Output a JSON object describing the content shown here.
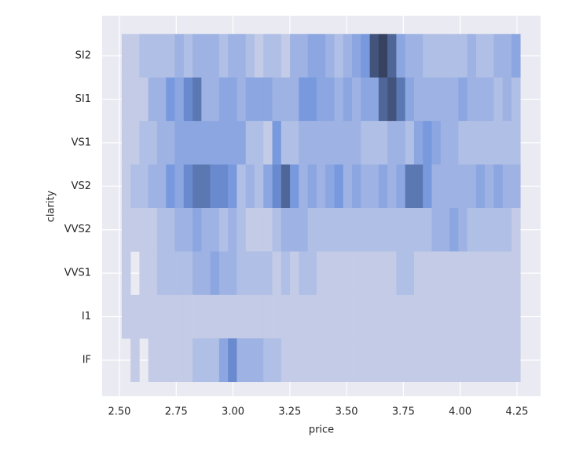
{
  "chart_data": {
    "type": "hist2d",
    "x_label": "price",
    "y_label": "clarity",
    "categories": [
      "SI2",
      "SI1",
      "VS1",
      "VS2",
      "VVS2",
      "VVS1",
      "I1",
      "IF"
    ],
    "bins": [
      2.51,
      2.549,
      2.588,
      2.627,
      2.666,
      2.705,
      2.744,
      2.783,
      2.822,
      2.861,
      2.9,
      2.939,
      2.978,
      3.017,
      3.056,
      3.095,
      3.134,
      3.173,
      3.212,
      3.251,
      3.29,
      3.329,
      3.368,
      3.407,
      3.446,
      3.485,
      3.524,
      3.563,
      3.602,
      3.641,
      3.68,
      3.719,
      3.758,
      3.797,
      3.836,
      3.875,
      3.914,
      3.953,
      3.992,
      4.031,
      4.07,
      4.109,
      4.148,
      4.187,
      4.226,
      4.265
    ],
    "counts": [
      [
        1,
        1,
        2,
        2,
        2,
        2,
        3,
        2,
        3,
        3,
        3,
        2,
        3,
        3,
        2,
        1,
        2,
        2,
        1,
        3,
        3,
        4,
        4,
        3,
        2,
        3,
        4,
        5,
        9,
        10,
        8,
        4,
        3,
        3,
        2,
        2,
        2,
        2,
        2,
        3,
        2,
        2,
        3,
        3,
        4
      ],
      [
        1,
        1,
        1,
        3,
        3,
        5,
        4,
        6,
        7,
        3,
        3,
        4,
        4,
        3,
        4,
        4,
        4,
        3,
        3,
        3,
        5,
        5,
        4,
        4,
        3,
        4,
        3,
        4,
        4,
        8,
        9,
        7,
        4,
        3,
        3,
        3,
        3,
        3,
        4,
        3,
        3,
        3,
        2,
        3,
        2
      ],
      [
        1,
        1,
        2,
        2,
        3,
        3,
        4,
        4,
        4,
        4,
        4,
        4,
        4,
        4,
        2,
        2,
        1,
        5,
        2,
        2,
        3,
        3,
        3,
        3,
        3,
        3,
        3,
        2,
        2,
        2,
        3,
        3,
        2,
        4,
        5,
        4,
        3,
        3,
        2,
        2,
        2,
        2,
        2,
        2,
        2
      ],
      [
        1,
        2,
        2,
        3,
        3,
        5,
        4,
        6,
        7,
        7,
        6,
        6,
        5,
        2,
        3,
        2,
        4,
        6,
        8,
        5,
        3,
        4,
        3,
        4,
        5,
        3,
        4,
        3,
        3,
        4,
        3,
        4,
        7,
        7,
        5,
        3,
        3,
        3,
        3,
        3,
        4,
        3,
        4,
        3,
        3
      ],
      [
        1,
        1,
        1,
        1,
        2,
        2,
        3,
        3,
        4,
        3,
        3,
        2,
        3,
        2,
        1,
        1,
        1,
        2,
        3,
        3,
        3,
        2,
        2,
        2,
        2,
        2,
        2,
        2,
        2,
        2,
        2,
        2,
        2,
        2,
        2,
        3,
        3,
        4,
        3,
        2,
        2,
        2,
        2,
        2,
        1
      ],
      [
        1,
        0,
        1,
        1,
        2,
        2,
        2,
        2,
        3,
        3,
        4,
        3,
        3,
        2,
        2,
        2,
        2,
        1,
        2,
        1,
        2,
        2,
        1,
        1,
        1,
        1,
        1,
        1,
        1,
        1,
        1,
        2,
        2,
        1,
        1,
        1,
        1,
        1,
        1,
        1,
        1,
        1,
        1,
        1,
        1
      ],
      [
        1,
        1,
        1,
        1,
        1,
        1,
        1,
        1,
        1,
        1,
        1,
        1,
        1,
        1,
        1,
        1,
        1,
        1,
        1,
        1,
        1,
        1,
        1,
        1,
        1,
        1,
        1,
        1,
        1,
        1,
        1,
        1,
        1,
        1,
        1,
        1,
        1,
        1,
        1,
        1,
        1,
        1,
        1,
        1,
        1
      ],
      [
        0,
        1,
        0,
        1,
        1,
        1,
        1,
        1,
        2,
        2,
        2,
        4,
        6,
        3,
        3,
        3,
        2,
        2,
        1,
        1,
        1,
        1,
        1,
        1,
        1,
        1,
        1,
        1,
        1,
        1,
        1,
        1,
        1,
        1,
        1,
        1,
        1,
        1,
        1,
        1,
        1,
        1,
        1,
        1,
        1
      ]
    ],
    "cmap": [
      "#c3cbe7",
      "#6f93dd",
      "#364260"
    ],
    "xlim": [
      2.424,
      4.354
    ],
    "xticks": [
      {
        "value": 2.5,
        "label": "2.50"
      },
      {
        "value": 2.75,
        "label": "2.75"
      },
      {
        "value": 3.0,
        "label": "3.00"
      },
      {
        "value": 3.25,
        "label": "3.25"
      },
      {
        "value": 3.5,
        "label": "3.50"
      },
      {
        "value": 3.75,
        "label": "3.75"
      },
      {
        "value": 4.0,
        "label": "4.00"
      },
      {
        "value": 4.25,
        "label": "4.25"
      }
    ],
    "grid": true
  }
}
